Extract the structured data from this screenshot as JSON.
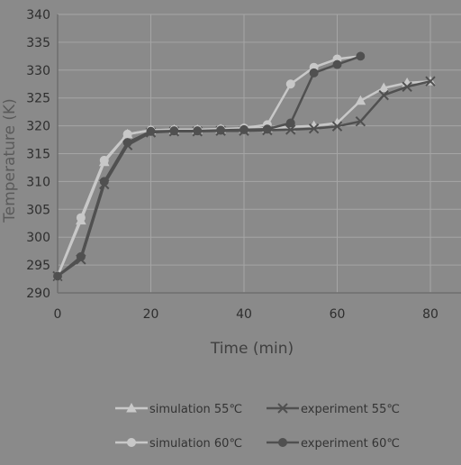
{
  "chart_data": {
    "type": "line",
    "title": "",
    "xlabel": "Time (min)",
    "ylabel": "Temperature (K)",
    "xlim": [
      0,
      80
    ],
    "ylim": [
      290,
      340
    ],
    "x_ticks": [
      "0",
      "20",
      "40",
      "60",
      "80"
    ],
    "y_ticks": [
      "290",
      "295",
      "300",
      "305",
      "310",
      "315",
      "320",
      "325",
      "330",
      "335",
      "340"
    ],
    "grid": true,
    "legend_position": "bottom",
    "series": [
      {
        "name": "simulation 55℃",
        "color": "#c8c8c8",
        "marker": "triangle",
        "x": [
          0,
          5,
          10,
          15,
          20,
          25,
          30,
          35,
          40,
          45,
          50,
          55,
          60,
          65,
          70,
          75,
          80
        ],
        "y": [
          293,
          303,
          313.5,
          318.5,
          319.2,
          319.3,
          319.3,
          319.4,
          319.5,
          319.6,
          319.8,
          320,
          320.5,
          324.5,
          326.8,
          327.7,
          328
        ]
      },
      {
        "name": "experiment 55℃",
        "color": "#505050",
        "marker": "x",
        "x": [
          0,
          5,
          10,
          15,
          20,
          25,
          30,
          35,
          40,
          45,
          50,
          55,
          60,
          65,
          70,
          75,
          80
        ],
        "y": [
          293,
          296,
          309.5,
          316.5,
          318.8,
          319,
          319,
          319.1,
          319.1,
          319.2,
          319.3,
          319.5,
          319.9,
          320.8,
          325.5,
          327,
          328
        ]
      },
      {
        "name": "simulation 60℃",
        "color": "#c8c8c8",
        "marker": "circle",
        "x": [
          0,
          5,
          10,
          15,
          20,
          25,
          30,
          35,
          40,
          45,
          50,
          55,
          60,
          65
        ],
        "y": [
          293,
          303.5,
          313.8,
          318.5,
          319.2,
          319.3,
          319.3,
          319.4,
          319.6,
          320.2,
          327.5,
          330.5,
          332,
          332.5
        ]
      },
      {
        "name": "experiment 60℃",
        "color": "#505050",
        "marker": "circle",
        "x": [
          0,
          5,
          10,
          15,
          20,
          25,
          30,
          35,
          40,
          45,
          50,
          55,
          60,
          65
        ],
        "y": [
          293,
          296.5,
          310,
          317,
          319,
          319.1,
          319.1,
          319.2,
          319.3,
          319.4,
          320.5,
          329.5,
          331,
          332.5
        ]
      }
    ]
  }
}
